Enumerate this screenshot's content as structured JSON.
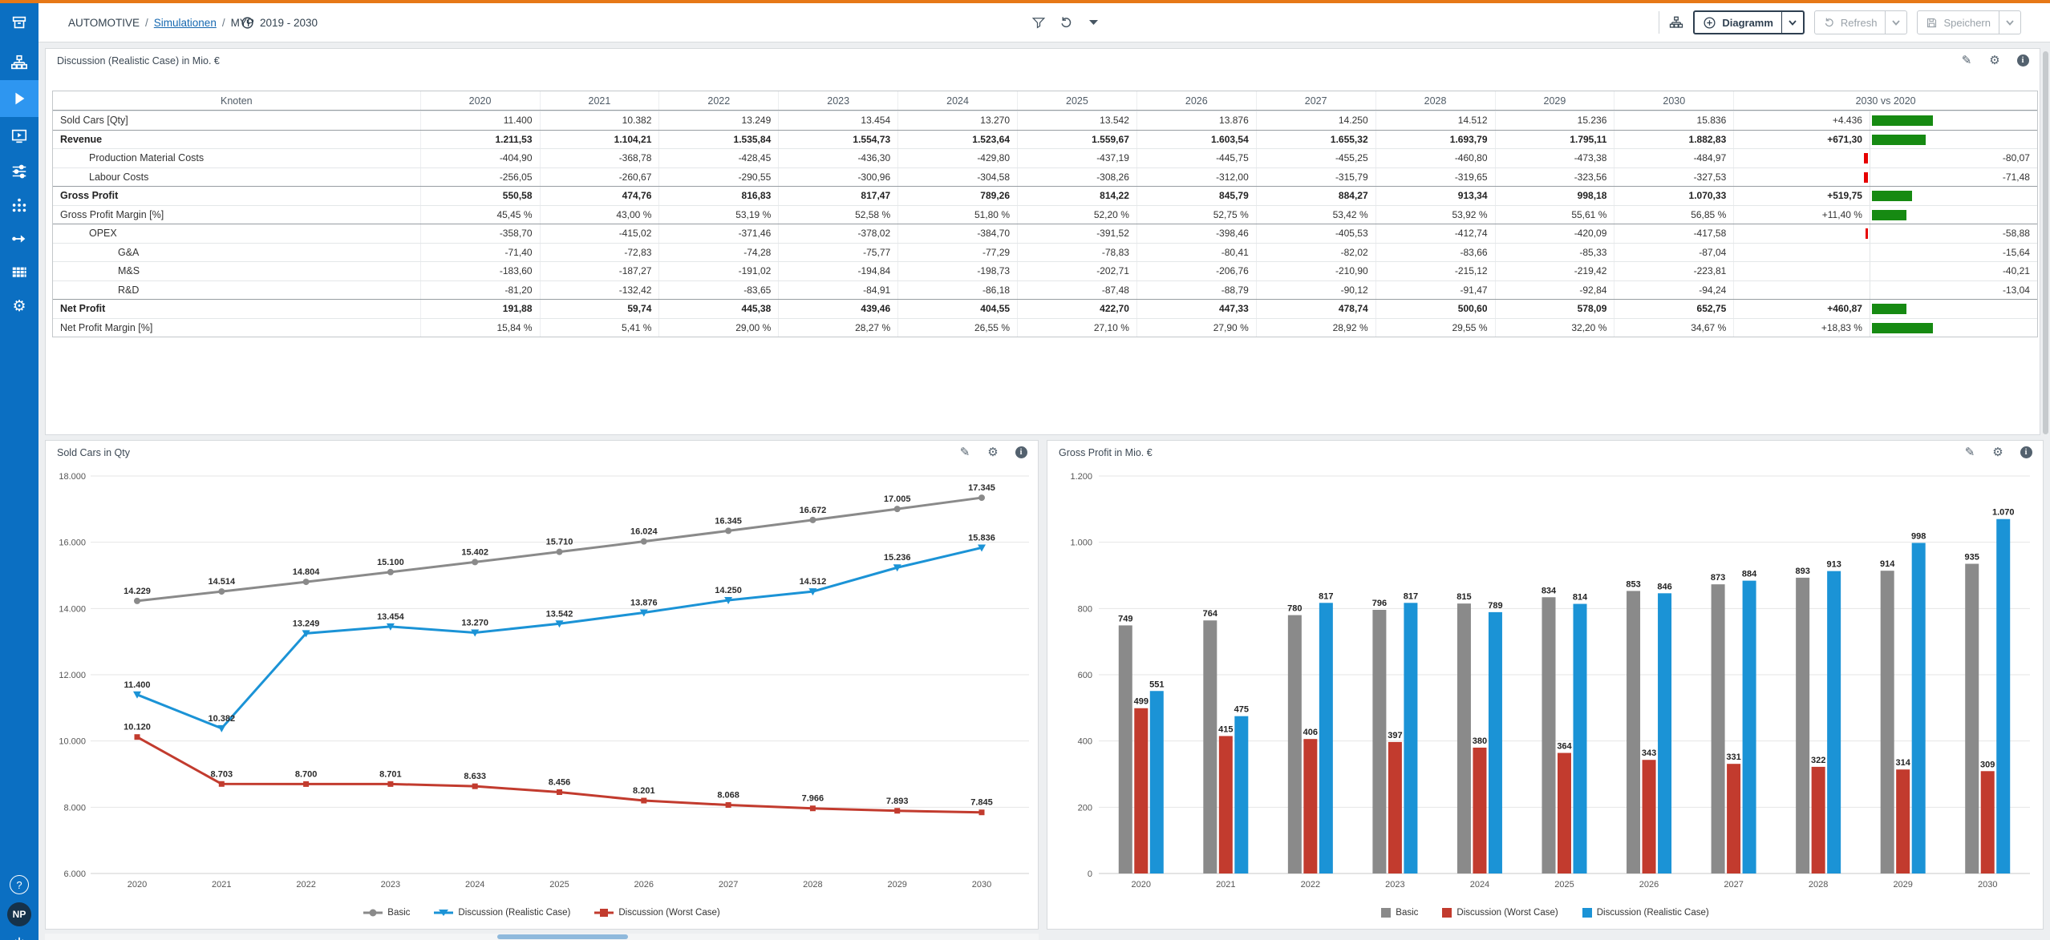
{
  "palette": {
    "accent_orange": "#e67817",
    "sidebar_blue": "#0b6fc2",
    "sidebar_active": "#2e96f0",
    "link_blue": "#1668b0",
    "basic_gray": "#8a8a8a",
    "worst_red": "#c23b2e",
    "realistic_blue": "#1b93d6",
    "delta_pos_green": "#168a12",
    "delta_neg_red": "#e60000"
  },
  "topbar": {
    "breadcrumb": {
      "app": "AUTOMOTIVE",
      "sep": "/",
      "workspace": "Simulationen",
      "model": "MYP"
    },
    "period": "2019 - 2030",
    "diagram_button": "Diagramm",
    "refresh_button": "Refresh",
    "save_button": "Speichern"
  },
  "sidebar": {
    "avatar_initials": "NP",
    "help": "?"
  },
  "table": {
    "title": "Discussion (Realistic Case) in Mio. €",
    "columns": [
      "Knoten",
      "2020",
      "2021",
      "2022",
      "2023",
      "2024",
      "2025",
      "2026",
      "2027",
      "2028",
      "2029",
      "2030",
      "2030 vs 2020"
    ],
    "rows": [
      {
        "label": "Sold Cars [Qty]",
        "indent": 0,
        "bold": false,
        "section": false,
        "values": [
          "11.400",
          "10.382",
          "13.249",
          "13.454",
          "13.270",
          "13.542",
          "13.876",
          "14.250",
          "14.512",
          "15.236",
          "15.836"
        ],
        "delta": {
          "text": "+4.436",
          "dir": "pos",
          "bar": 76
        }
      },
      {
        "label": "Revenue",
        "indent": 0,
        "bold": true,
        "section": true,
        "values": [
          "1.211,53",
          "1.104,21",
          "1.535,84",
          "1.554,73",
          "1.523,64",
          "1.559,67",
          "1.603,54",
          "1.655,32",
          "1.693,79",
          "1.795,11",
          "1.882,83"
        ],
        "delta": {
          "text": "+671,30",
          "dir": "pos",
          "bar": 67
        }
      },
      {
        "label": "Production Material Costs",
        "indent": 1,
        "bold": false,
        "section": false,
        "values": [
          "-404,90",
          "-368,78",
          "-428,45",
          "-436,30",
          "-429,80",
          "-437,19",
          "-445,75",
          "-455,25",
          "-460,80",
          "-473,38",
          "-484,97"
        ],
        "delta": {
          "text": "-80,07",
          "dir": "neg",
          "bar": 5
        }
      },
      {
        "label": "Labour Costs",
        "indent": 1,
        "bold": false,
        "section": false,
        "values": [
          "-256,05",
          "-260,67",
          "-290,55",
          "-300,96",
          "-304,58",
          "-308,26",
          "-312,00",
          "-315,79",
          "-319,65",
          "-323,56",
          "-327,53"
        ],
        "delta": {
          "text": "-71,48",
          "dir": "neg",
          "bar": 5
        }
      },
      {
        "label": "Gross Profit",
        "indent": 0,
        "bold": true,
        "section": true,
        "values": [
          "550,58",
          "474,76",
          "816,83",
          "817,47",
          "789,26",
          "814,22",
          "845,79",
          "884,27",
          "913,34",
          "998,18",
          "1.070,33"
        ],
        "delta": {
          "text": "+519,75",
          "dir": "pos",
          "bar": 50
        }
      },
      {
        "label": "Gross Profit Margin [%]",
        "indent": 0,
        "bold": false,
        "section": false,
        "values": [
          "45,45 %",
          "43,00 %",
          "53,19 %",
          "52,58 %",
          "51,80 %",
          "52,20 %",
          "52,75 %",
          "53,42 %",
          "53,92 %",
          "55,61 %",
          "56,85 %"
        ],
        "delta": {
          "text": "+11,40 %",
          "dir": "pos",
          "bar": 43
        }
      },
      {
        "label": "OPEX",
        "indent": 1,
        "bold": false,
        "section": true,
        "values": [
          "-358,70",
          "-415,02",
          "-371,46",
          "-378,02",
          "-384,70",
          "-391,52",
          "-398,46",
          "-405,53",
          "-412,74",
          "-420,09",
          "-417,58"
        ],
        "delta": {
          "text": "-58,88",
          "dir": "neg",
          "bar": 3
        }
      },
      {
        "label": "G&A",
        "indent": 2,
        "bold": false,
        "section": false,
        "values": [
          "-71,40",
          "-72,83",
          "-74,28",
          "-75,77",
          "-77,29",
          "-78,83",
          "-80,41",
          "-82,02",
          "-83,66",
          "-85,33",
          "-87,04"
        ],
        "delta": {
          "text": "-15,64",
          "dir": "neg",
          "bar": 0
        }
      },
      {
        "label": "M&S",
        "indent": 2,
        "bold": false,
        "section": false,
        "values": [
          "-183,60",
          "-187,27",
          "-191,02",
          "-194,84",
          "-198,73",
          "-202,71",
          "-206,76",
          "-210,90",
          "-215,12",
          "-219,42",
          "-223,81"
        ],
        "delta": {
          "text": "-40,21",
          "dir": "neg",
          "bar": 0
        }
      },
      {
        "label": "R&D",
        "indent": 2,
        "bold": false,
        "section": false,
        "values": [
          "-81,20",
          "-132,42",
          "-83,65",
          "-84,91",
          "-86,18",
          "-87,48",
          "-88,79",
          "-90,12",
          "-91,47",
          "-92,84",
          "-94,24"
        ],
        "delta": {
          "text": "-13,04",
          "dir": "neg",
          "bar": 0
        }
      },
      {
        "label": "Net Profit",
        "indent": 0,
        "bold": true,
        "section": true,
        "values": [
          "191,88",
          "59,74",
          "445,38",
          "439,46",
          "404,55",
          "422,70",
          "447,33",
          "478,74",
          "500,60",
          "578,09",
          "652,75"
        ],
        "delta": {
          "text": "+460,87",
          "dir": "pos",
          "bar": 43
        }
      },
      {
        "label": "Net Profit Margin [%]",
        "indent": 0,
        "bold": false,
        "section": false,
        "values": [
          "15,84 %",
          "5,41 %",
          "29,00 %",
          "28,27 %",
          "26,55 %",
          "27,10 %",
          "27,90 %",
          "28,92 %",
          "29,55 %",
          "32,20 %",
          "34,67 %"
        ],
        "delta": {
          "text": "+18,83 %",
          "dir": "pos",
          "bar": 76
        }
      }
    ]
  },
  "chart_data": [
    {
      "type": "line",
      "title": "Sold Cars in Qty",
      "x": [
        "2020",
        "2021",
        "2022",
        "2023",
        "2024",
        "2025",
        "2026",
        "2027",
        "2028",
        "2029",
        "2030"
      ],
      "ylim": [
        6000,
        18000
      ],
      "ystep": 2000,
      "grid": true,
      "legend_position": "bottom",
      "series": [
        {
          "name": "Basic",
          "color_key": "basic_gray",
          "marker": "circle",
          "values": [
            14229,
            14514,
            14804,
            15100,
            15402,
            15710,
            16024,
            16345,
            16672,
            17005,
            17345
          ]
        },
        {
          "name": "Discussion (Realistic Case)",
          "color_key": "realistic_blue",
          "marker": "triangle",
          "values": [
            11400,
            10382,
            13249,
            13454,
            13270,
            13542,
            13876,
            14250,
            14512,
            15236,
            15836
          ]
        },
        {
          "name": "Discussion (Worst Case)",
          "color_key": "worst_red",
          "marker": "square",
          "values": [
            10120,
            8703,
            8700,
            8701,
            8633,
            8456,
            8201,
            8068,
            7966,
            7893,
            7845
          ]
        }
      ]
    },
    {
      "type": "bar",
      "title": "Gross Profit in Mio. €",
      "categories": [
        "2020",
        "2021",
        "2022",
        "2023",
        "2024",
        "2025",
        "2026",
        "2027",
        "2028",
        "2029",
        "2030"
      ],
      "ylim": [
        0,
        1200
      ],
      "ystep": 200,
      "grid": true,
      "legend_position": "bottom",
      "series": [
        {
          "name": "Basic",
          "color_key": "basic_gray",
          "values": [
            749,
            764,
            780,
            796,
            815,
            834,
            853,
            873,
            893,
            914,
            935
          ]
        },
        {
          "name": "Discussion (Worst Case)",
          "color_key": "worst_red",
          "values": [
            499,
            415,
            406,
            397,
            380,
            364,
            343,
            331,
            322,
            314,
            309
          ]
        },
        {
          "name": "Discussion (Realistic Case)",
          "color_key": "realistic_blue",
          "values": [
            551,
            475,
            817,
            817,
            789,
            814,
            846,
            884,
            913,
            998,
            1070
          ]
        }
      ]
    }
  ]
}
